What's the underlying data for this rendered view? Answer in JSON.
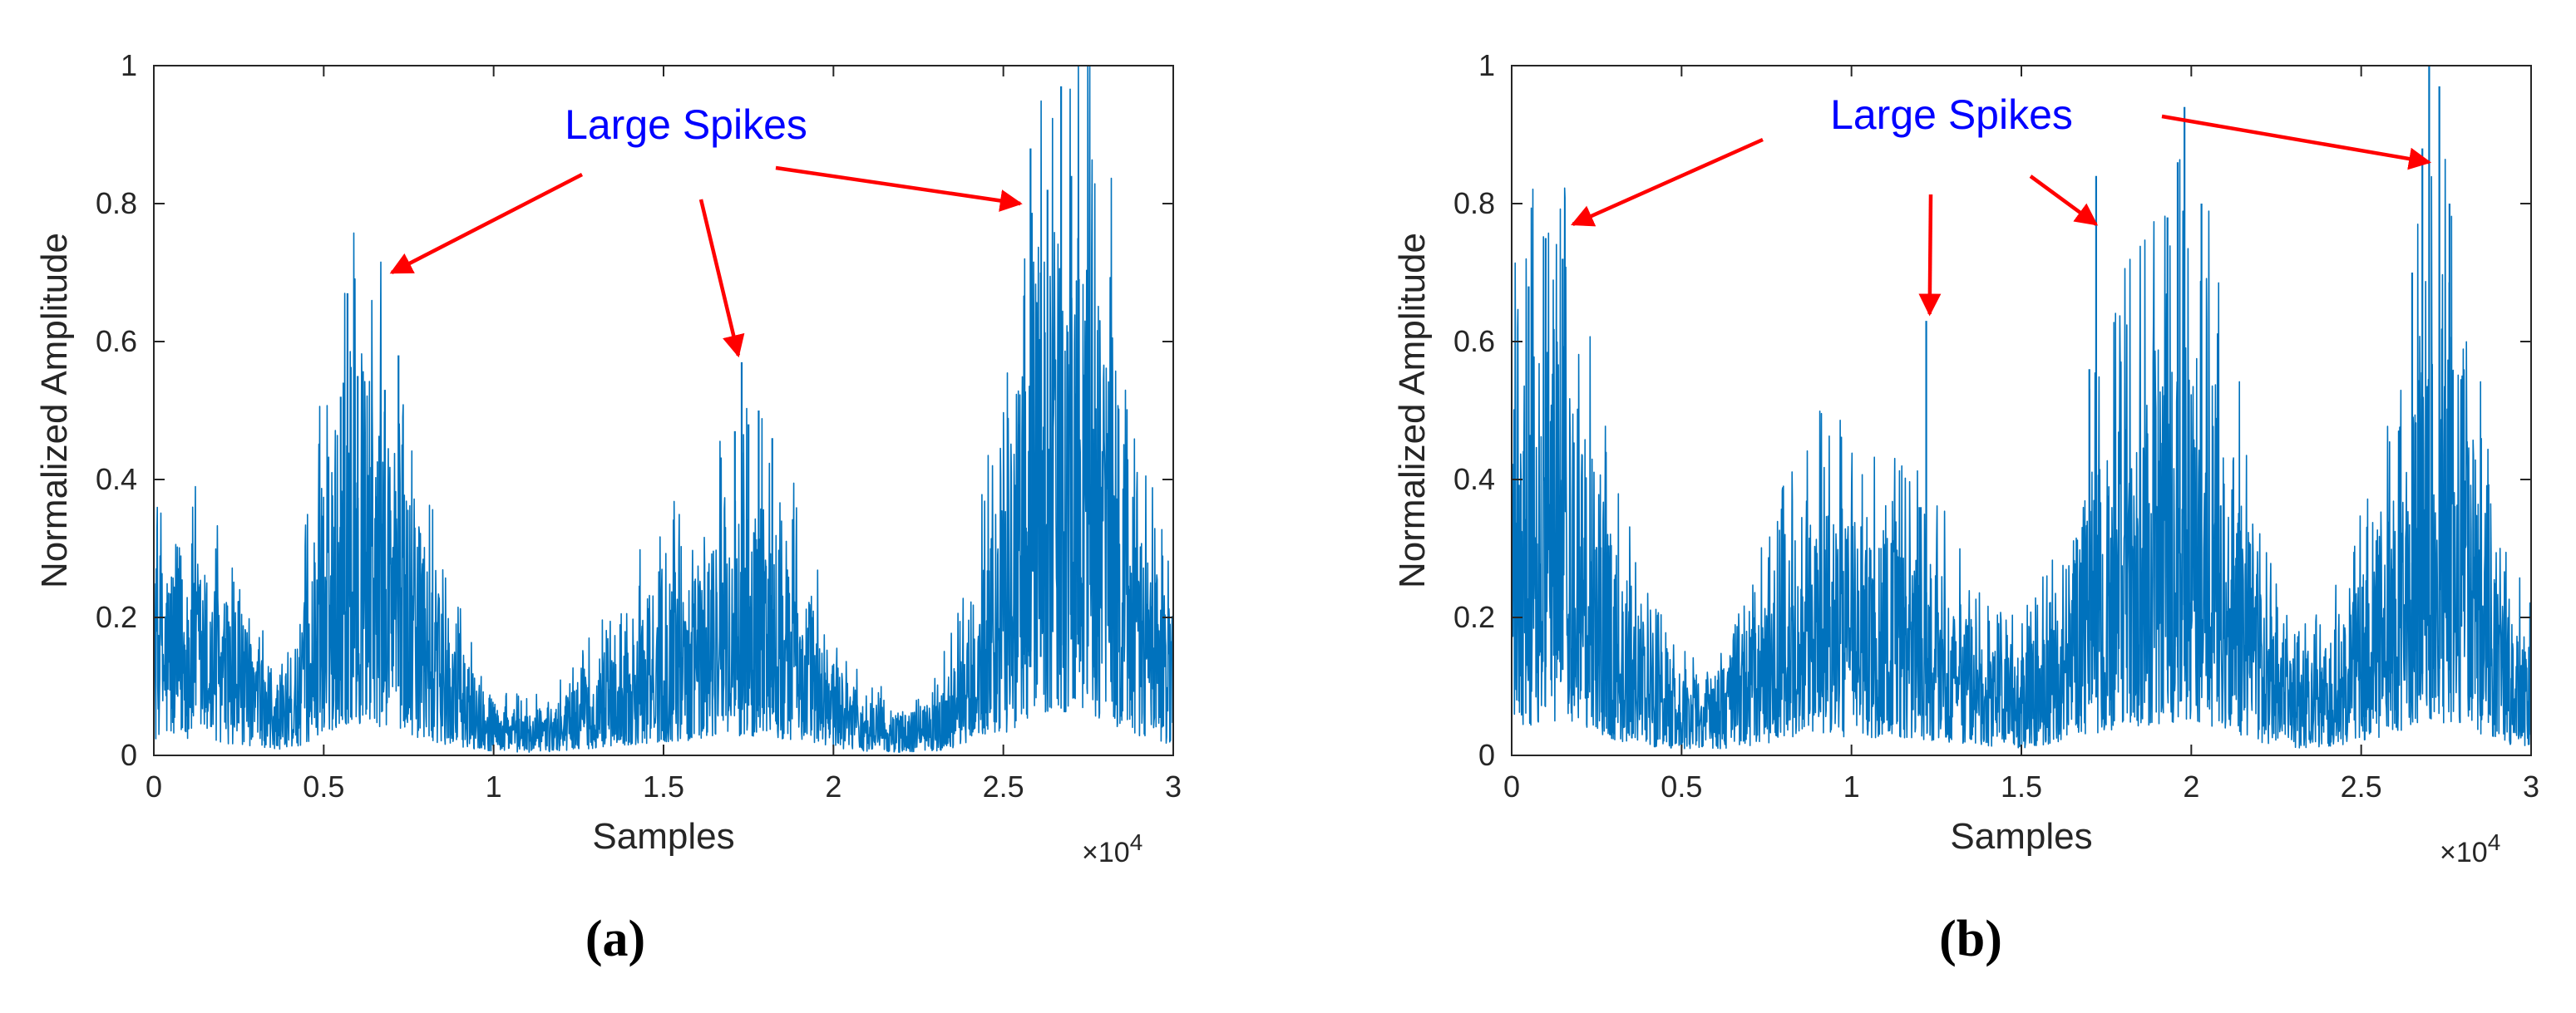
{
  "colors": {
    "series": "#0072BD",
    "annotation_text": "#0000FF",
    "arrow": "#FF0000",
    "axis": "#262626",
    "tick_text": "#262626",
    "frame": "#262626"
  },
  "chart_data": [
    {
      "panel": "a",
      "panel_label": "(a)",
      "type": "line",
      "xlabel": "Samples",
      "ylabel": "Normalized Amplitude",
      "x_exponent_label": "×10",
      "x_exponent_power": "4",
      "xlim": [
        0,
        3
      ],
      "ylim": [
        0,
        1
      ],
      "x_unit_multiplier": 10000,
      "xticks": [
        0,
        0.5,
        1,
        1.5,
        2,
        2.5,
        3
      ],
      "xtick_labels": [
        "0",
        "0.5",
        "1",
        "1.5",
        "2",
        "2.5",
        "3"
      ],
      "yticks": [
        0,
        0.2,
        0.4,
        0.6,
        0.8,
        1
      ],
      "ytick_labels": [
        "0",
        "0.2",
        "0.4",
        "0.6",
        "0.8",
        "1"
      ],
      "grid": false,
      "envelope": [
        [
          0,
          0.14
        ],
        [
          0.1,
          0.16
        ],
        [
          0.2,
          0.12
        ],
        [
          0.3,
          0.08
        ],
        [
          0.35,
          0.05
        ],
        [
          0.42,
          0.08
        ],
        [
          0.5,
          0.2
        ],
        [
          0.57,
          0.3
        ],
        [
          0.65,
          0.28
        ],
        [
          0.72,
          0.25
        ],
        [
          0.8,
          0.14
        ],
        [
          0.9,
          0.08
        ],
        [
          1.0,
          0.04
        ],
        [
          1.1,
          0.03
        ],
        [
          1.2,
          0.04
        ],
        [
          1.3,
          0.07
        ],
        [
          1.4,
          0.1
        ],
        [
          1.5,
          0.13
        ],
        [
          1.6,
          0.15
        ],
        [
          1.7,
          0.18
        ],
        [
          1.8,
          0.18
        ],
        [
          1.9,
          0.14
        ],
        [
          2.0,
          0.07
        ],
        [
          2.1,
          0.04
        ],
        [
          2.2,
          0.03
        ],
        [
          2.3,
          0.04
        ],
        [
          2.4,
          0.1
        ],
        [
          2.5,
          0.2
        ],
        [
          2.6,
          0.35
        ],
        [
          2.7,
          0.42
        ],
        [
          2.8,
          0.33
        ],
        [
          2.9,
          0.18
        ],
        [
          3.0,
          0.1
        ]
      ],
      "spikes": [
        [
          0.57,
          0.67
        ],
        [
          0.55,
          0.52
        ],
        [
          0.6,
          0.55
        ],
        [
          0.68,
          0.53
        ],
        [
          0.72,
          0.58
        ],
        [
          1.73,
          0.57
        ],
        [
          1.71,
          0.47
        ],
        [
          1.75,
          0.48
        ],
        [
          1.82,
          0.46
        ],
        [
          1.78,
          0.5
        ],
        [
          2.58,
          0.88
        ],
        [
          2.67,
          0.97
        ],
        [
          2.63,
          0.82
        ],
        [
          2.7,
          0.84
        ],
        [
          2.72,
          0.75
        ],
        [
          2.61,
          0.7
        ]
      ],
      "annotation": {
        "text": "Large Spikes",
        "arrow_targets": [
          [
            0.7,
            0.7
          ],
          [
            1.72,
            0.58
          ],
          [
            2.55,
            0.8
          ]
        ]
      }
    },
    {
      "panel": "b",
      "panel_label": "(b)",
      "type": "line",
      "xlabel": "Samples",
      "ylabel": "Normalized Amplitude",
      "x_exponent_label": "×10",
      "x_exponent_power": "4",
      "xlim": [
        0,
        3
      ],
      "ylim": [
        0,
        1
      ],
      "x_unit_multiplier": 10000,
      "xticks": [
        0,
        0.5,
        1,
        1.5,
        2,
        2.5,
        3
      ],
      "xtick_labels": [
        "0",
        "0.5",
        "1",
        "1.5",
        "2",
        "2.5",
        "3"
      ],
      "yticks": [
        0,
        0.2,
        0.4,
        0.6,
        0.8,
        1
      ],
      "ytick_labels": [
        "0",
        "0.2",
        "0.4",
        "0.6",
        "0.8",
        "1"
      ],
      "grid": false,
      "envelope": [
        [
          0,
          0.25
        ],
        [
          0.1,
          0.32
        ],
        [
          0.2,
          0.3
        ],
        [
          0.3,
          0.15
        ],
        [
          0.4,
          0.09
        ],
        [
          0.5,
          0.06
        ],
        [
          0.6,
          0.06
        ],
        [
          0.7,
          0.09
        ],
        [
          0.8,
          0.14
        ],
        [
          0.9,
          0.18
        ],
        [
          1.0,
          0.18
        ],
        [
          1.1,
          0.16
        ],
        [
          1.2,
          0.15
        ],
        [
          1.3,
          0.12
        ],
        [
          1.4,
          0.08
        ],
        [
          1.5,
          0.07
        ],
        [
          1.6,
          0.12
        ],
        [
          1.7,
          0.2
        ],
        [
          1.8,
          0.25
        ],
        [
          1.9,
          0.3
        ],
        [
          2.0,
          0.33
        ],
        [
          2.1,
          0.25
        ],
        [
          2.2,
          0.12
        ],
        [
          2.3,
          0.07
        ],
        [
          2.4,
          0.08
        ],
        [
          2.5,
          0.13
        ],
        [
          2.6,
          0.2
        ],
        [
          2.7,
          0.32
        ],
        [
          2.8,
          0.3
        ],
        [
          2.9,
          0.12
        ],
        [
          3.0,
          0.08
        ]
      ],
      "spikes": [
        [
          0.1,
          0.75
        ],
        [
          0.15,
          0.72
        ],
        [
          0.05,
          0.68
        ],
        [
          1.22,
          0.63
        ],
        [
          1.2,
          0.36
        ],
        [
          1.72,
          0.84
        ],
        [
          1.7,
          0.56
        ],
        [
          1.98,
          0.94
        ],
        [
          1.96,
          0.86
        ],
        [
          2.03,
          0.8
        ],
        [
          1.93,
          0.78
        ],
        [
          2.7,
          1.0
        ],
        [
          2.73,
          0.97
        ],
        [
          2.68,
          0.88
        ],
        [
          2.76,
          0.8
        ],
        [
          2.65,
          0.7
        ]
      ],
      "annotation": {
        "text": "Large Spikes",
        "arrow_targets": [
          [
            0.18,
            0.77
          ],
          [
            1.23,
            0.64
          ],
          [
            1.72,
            0.77
          ],
          [
            2.7,
            0.86
          ]
        ]
      }
    }
  ]
}
